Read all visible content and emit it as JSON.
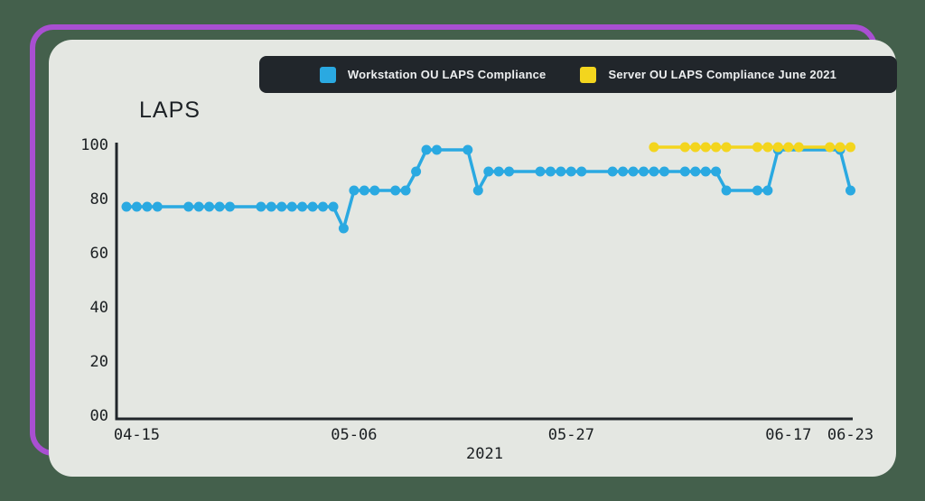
{
  "page": {
    "background_color": "#44604c",
    "frame_color": "#a94fd2"
  },
  "card": {
    "title": "LAPS",
    "background_color": "#e4e7e2"
  },
  "legend": {
    "background_color": "#21262b",
    "items": [
      {
        "label": "Workstation OU LAPS Compliance",
        "color": "#2aa9e1"
      },
      {
        "label": "Server OU LAPS Compliance June 2021",
        "color": "#f3d51e"
      }
    ]
  },
  "chart_data": {
    "type": "line",
    "title": "LAPS",
    "xlabel": "2021",
    "ylabel": "",
    "ylim": [
      0,
      100
    ],
    "grid": false,
    "legend_position": "top",
    "axis_color": "#20252a",
    "tick_text_color": "#1a1e21",
    "y_ticks": [
      {
        "label": "100",
        "value": 100
      },
      {
        "label": "80",
        "value": 80
      },
      {
        "label": "60",
        "value": 60
      },
      {
        "label": "40",
        "value": 40
      },
      {
        "label": "20",
        "value": 20
      },
      {
        "label": "00",
        "value": 0
      }
    ],
    "x_ticks": [
      {
        "label": "04-15",
        "day": 1
      },
      {
        "label": "05-06",
        "day": 22
      },
      {
        "label": "05-27",
        "day": 43
      },
      {
        "label": "06-17",
        "day": 64
      },
      {
        "label": "06-23",
        "day": 70
      }
    ],
    "x_axis_note": "day index 0 corresponds to 2021-04-14; one unit = one day",
    "series": [
      {
        "name": "Workstation OU LAPS Compliance",
        "color": "#2aa9e1",
        "points": [
          {
            "day": 0,
            "date": "04-14",
            "value": 77
          },
          {
            "day": 1,
            "date": "04-15",
            "value": 77
          },
          {
            "day": 2,
            "date": "04-16",
            "value": 77
          },
          {
            "day": 3,
            "date": "04-17",
            "value": 77
          },
          {
            "day": 6,
            "date": "04-20",
            "value": 77
          },
          {
            "day": 7,
            "date": "04-21",
            "value": 77
          },
          {
            "day": 8,
            "date": "04-22",
            "value": 77
          },
          {
            "day": 9,
            "date": "04-23",
            "value": 77
          },
          {
            "day": 10,
            "date": "04-24",
            "value": 77
          },
          {
            "day": 13,
            "date": "04-27",
            "value": 77
          },
          {
            "day": 14,
            "date": "04-28",
            "value": 77
          },
          {
            "day": 15,
            "date": "04-29",
            "value": 77
          },
          {
            "day": 16,
            "date": "04-30",
            "value": 77
          },
          {
            "day": 17,
            "date": "05-01",
            "value": 77
          },
          {
            "day": 18,
            "date": "05-02",
            "value": 77
          },
          {
            "day": 19,
            "date": "05-03",
            "value": 77
          },
          {
            "day": 20,
            "date": "05-04",
            "value": 77
          },
          {
            "day": 21,
            "date": "05-05",
            "value": 69
          },
          {
            "day": 22,
            "date": "05-06",
            "value": 83
          },
          {
            "day": 23,
            "date": "05-07",
            "value": 83
          },
          {
            "day": 24,
            "date": "05-08",
            "value": 83
          },
          {
            "day": 26,
            "date": "05-10",
            "value": 83
          },
          {
            "day": 27,
            "date": "05-11",
            "value": 83
          },
          {
            "day": 28,
            "date": "05-12",
            "value": 90
          },
          {
            "day": 29,
            "date": "05-13",
            "value": 98
          },
          {
            "day": 30,
            "date": "05-14",
            "value": 98
          },
          {
            "day": 33,
            "date": "05-17",
            "value": 98
          },
          {
            "day": 34,
            "date": "05-18",
            "value": 83
          },
          {
            "day": 35,
            "date": "05-19",
            "value": 90
          },
          {
            "day": 36,
            "date": "05-20",
            "value": 90
          },
          {
            "day": 37,
            "date": "05-21",
            "value": 90
          },
          {
            "day": 40,
            "date": "05-24",
            "value": 90
          },
          {
            "day": 41,
            "date": "05-25",
            "value": 90
          },
          {
            "day": 42,
            "date": "05-26",
            "value": 90
          },
          {
            "day": 43,
            "date": "05-27",
            "value": 90
          },
          {
            "day": 44,
            "date": "05-28",
            "value": 90
          },
          {
            "day": 47,
            "date": "05-31",
            "value": 90
          },
          {
            "day": 48,
            "date": "06-01",
            "value": 90
          },
          {
            "day": 49,
            "date": "06-02",
            "value": 90
          },
          {
            "day": 50,
            "date": "06-03",
            "value": 90
          },
          {
            "day": 51,
            "date": "06-04",
            "value": 90
          },
          {
            "day": 52,
            "date": "06-05",
            "value": 90
          },
          {
            "day": 54,
            "date": "06-07",
            "value": 90
          },
          {
            "day": 55,
            "date": "06-08",
            "value": 90
          },
          {
            "day": 56,
            "date": "06-09",
            "value": 90
          },
          {
            "day": 57,
            "date": "06-10",
            "value": 90
          },
          {
            "day": 58,
            "date": "06-11",
            "value": 83
          },
          {
            "day": 61,
            "date": "06-14",
            "value": 83
          },
          {
            "day": 62,
            "date": "06-15",
            "value": 83
          },
          {
            "day": 63,
            "date": "06-16",
            "value": 98
          },
          {
            "day": 69,
            "date": "06-22",
            "value": 98
          },
          {
            "day": 70,
            "date": "06-23",
            "value": 83
          }
        ]
      },
      {
        "name": "Server OU LAPS Compliance June 2021",
        "color": "#f3d51e",
        "points": [
          {
            "day": 51,
            "date": "06-04",
            "value": 99
          },
          {
            "day": 54,
            "date": "06-07",
            "value": 99
          },
          {
            "day": 55,
            "date": "06-08",
            "value": 99
          },
          {
            "day": 56,
            "date": "06-09",
            "value": 99
          },
          {
            "day": 57,
            "date": "06-10",
            "value": 99
          },
          {
            "day": 58,
            "date": "06-11",
            "value": 99
          },
          {
            "day": 61,
            "date": "06-14",
            "value": 99
          },
          {
            "day": 62,
            "date": "06-15",
            "value": 99
          },
          {
            "day": 63,
            "date": "06-16",
            "value": 99
          },
          {
            "day": 64,
            "date": "06-17",
            "value": 99
          },
          {
            "day": 65,
            "date": "06-18",
            "value": 99
          },
          {
            "day": 68,
            "date": "06-21",
            "value": 99
          },
          {
            "day": 69,
            "date": "06-22",
            "value": 99
          },
          {
            "day": 70,
            "date": "06-23",
            "value": 99
          }
        ]
      }
    ]
  }
}
